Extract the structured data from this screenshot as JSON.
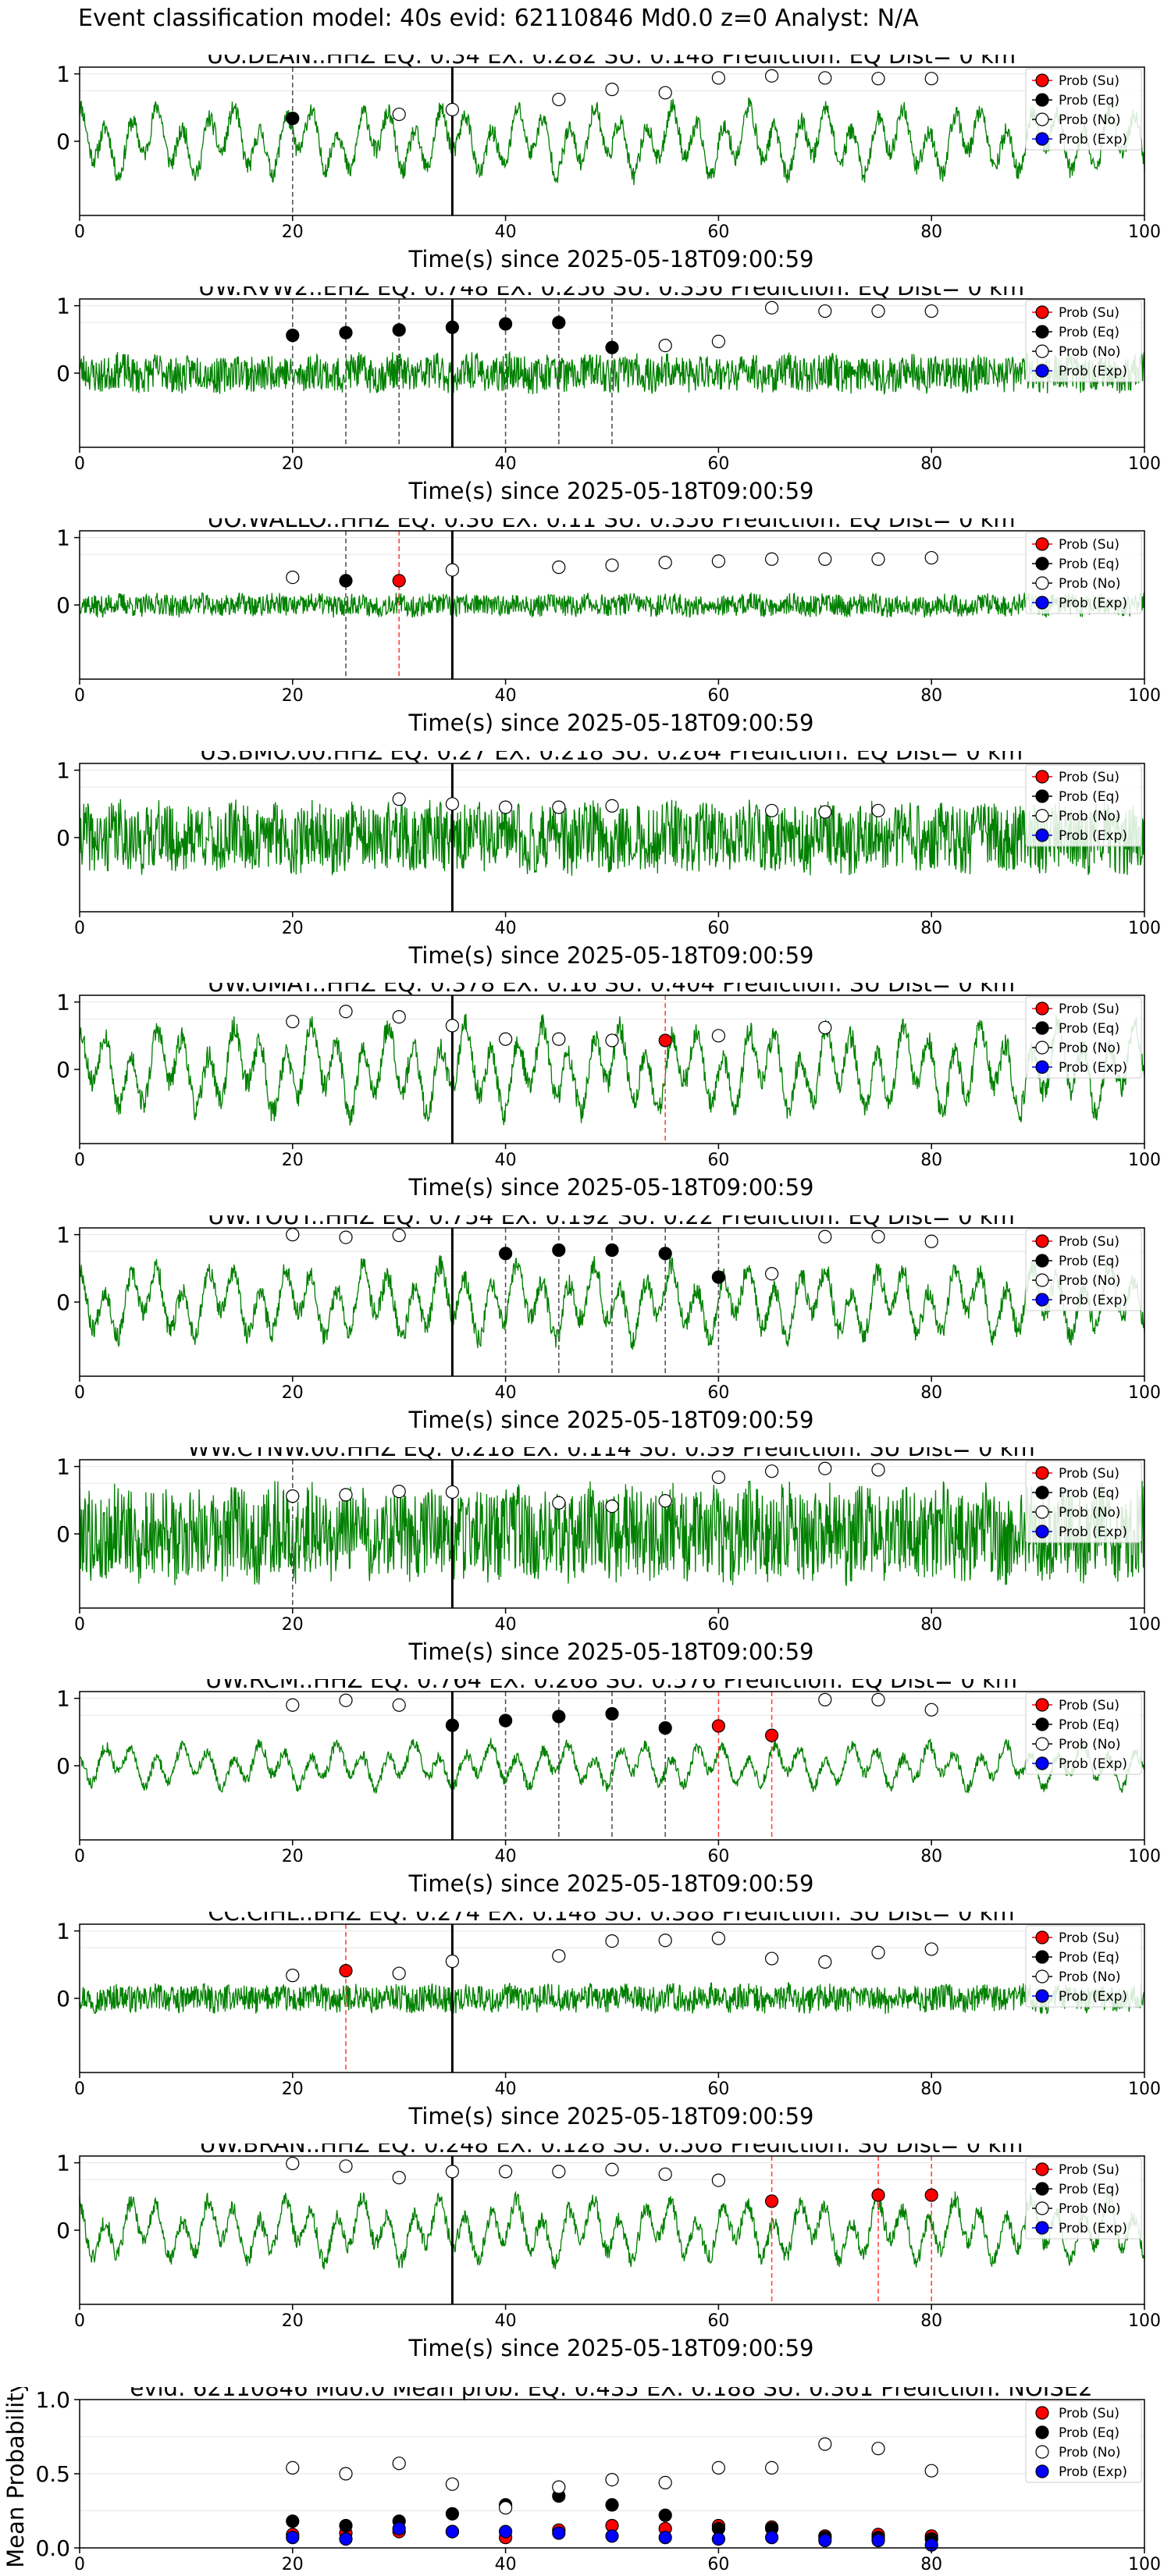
{
  "suptitle": "Event classification model: 40s evid: 62110846 Md0.0 z=0 Analyst: N/A",
  "legend": {
    "su": "Prob (Su)",
    "eq": "Prob (Eq)",
    "no": "Prob (No)",
    "exp": "Prob (Exp)"
  },
  "colors": {
    "trace": "#008000",
    "su": "#ff0000",
    "eq": "#000000",
    "no": "#ffffff",
    "exp": "#0000ff",
    "eq_line": "#555555",
    "su_line": "#ff4444"
  },
  "chart_data": [
    {
      "type": "line",
      "title": "UO.DEAN..HHZ   EQ: 0.34  EX: 0.282  SU: 0.148   Prediction: EQ    Dist= 0 km",
      "xlabel": "Time(s) since 2025-05-18T09:00:59",
      "xlim": [
        0,
        100
      ],
      "ylim": [
        -1.1,
        1.1
      ],
      "xticks": [
        "0",
        "20",
        "40",
        "60",
        "80",
        "100"
      ],
      "yticks": [
        "1",
        "0"
      ],
      "pick_time": 35,
      "eq_lines": [
        20
      ],
      "su_lines": [],
      "seed": 11,
      "amp": 0.55,
      "style": "osc",
      "points": [
        {
          "t": 20,
          "p": 0.34,
          "c": "eq"
        },
        {
          "t": 30,
          "p": 0.4,
          "c": "no"
        },
        {
          "t": 35,
          "p": 0.47,
          "c": "no"
        },
        {
          "t": 45,
          "p": 0.62,
          "c": "no"
        },
        {
          "t": 50,
          "p": 0.77,
          "c": "no"
        },
        {
          "t": 55,
          "p": 0.72,
          "c": "no"
        },
        {
          "t": 60,
          "p": 0.94,
          "c": "no"
        },
        {
          "t": 65,
          "p": 0.97,
          "c": "no"
        },
        {
          "t": 70,
          "p": 0.94,
          "c": "no"
        },
        {
          "t": 75,
          "p": 0.93,
          "c": "no"
        },
        {
          "t": 80,
          "p": 0.93,
          "c": "no"
        }
      ]
    },
    {
      "type": "line",
      "title": "UW.RVW2..EHZ   EQ: 0.748  EX: 0.256  SU: 0.356   Prediction: EQ    Dist= 0 km",
      "xlabel": "Time(s) since 2025-05-18T09:00:59",
      "xlim": [
        0,
        100
      ],
      "ylim": [
        -1.1,
        1.1
      ],
      "xticks": [
        "0",
        "20",
        "40",
        "60",
        "80",
        "100"
      ],
      "yticks": [
        "1",
        "0"
      ],
      "pick_time": 35,
      "eq_lines": [
        20,
        25,
        30,
        40,
        45,
        50
      ],
      "su_lines": [],
      "seed": 23,
      "amp": 0.3,
      "style": "noise",
      "points": [
        {
          "t": 20,
          "p": 0.56,
          "c": "eq"
        },
        {
          "t": 25,
          "p": 0.6,
          "c": "eq"
        },
        {
          "t": 30,
          "p": 0.64,
          "c": "eq"
        },
        {
          "t": 35,
          "p": 0.68,
          "c": "eq"
        },
        {
          "t": 40,
          "p": 0.73,
          "c": "eq"
        },
        {
          "t": 45,
          "p": 0.75,
          "c": "eq"
        },
        {
          "t": 50,
          "p": 0.38,
          "c": "eq"
        },
        {
          "t": 55,
          "p": 0.41,
          "c": "no"
        },
        {
          "t": 60,
          "p": 0.47,
          "c": "no"
        },
        {
          "t": 65,
          "p": 0.97,
          "c": "no"
        },
        {
          "t": 70,
          "p": 0.92,
          "c": "no"
        },
        {
          "t": 75,
          "p": 0.92,
          "c": "no"
        },
        {
          "t": 80,
          "p": 0.92,
          "c": "no"
        }
      ]
    },
    {
      "type": "line",
      "title": "UO.WALLO..HHZ   EQ: 0.36  EX: 0.11  SU: 0.356   Prediction: EQ    Dist= 0 km",
      "xlabel": "Time(s) since 2025-05-18T09:00:59",
      "xlim": [
        0,
        100
      ],
      "ylim": [
        -1.1,
        1.1
      ],
      "xticks": [
        "0",
        "20",
        "40",
        "60",
        "80",
        "100"
      ],
      "yticks": [
        "1",
        "0"
      ],
      "pick_time": 35,
      "eq_lines": [
        25
      ],
      "su_lines": [
        30
      ],
      "seed": 37,
      "amp": 0.18,
      "style": "noise",
      "points": [
        {
          "t": 20,
          "p": 0.41,
          "c": "no"
        },
        {
          "t": 25,
          "p": 0.36,
          "c": "eq"
        },
        {
          "t": 30,
          "p": 0.36,
          "c": "su"
        },
        {
          "t": 35,
          "p": 0.52,
          "c": "no"
        },
        {
          "t": 45,
          "p": 0.56,
          "c": "no"
        },
        {
          "t": 50,
          "p": 0.59,
          "c": "no"
        },
        {
          "t": 55,
          "p": 0.63,
          "c": "no"
        },
        {
          "t": 60,
          "p": 0.65,
          "c": "no"
        },
        {
          "t": 65,
          "p": 0.68,
          "c": "no"
        },
        {
          "t": 70,
          "p": 0.68,
          "c": "no"
        },
        {
          "t": 75,
          "p": 0.68,
          "c": "no"
        },
        {
          "t": 80,
          "p": 0.7,
          "c": "no"
        }
      ]
    },
    {
      "type": "line",
      "title": "US.BMO.00.HHZ   EQ: 0.27  EX: 0.218  SU: 0.264   Prediction: EQ    Dist= 0 km",
      "xlabel": "Time(s) since 2025-05-18T09:00:59",
      "xlim": [
        0,
        100
      ],
      "ylim": [
        -1.1,
        1.1
      ],
      "xticks": [
        "0",
        "20",
        "40",
        "60",
        "80",
        "100"
      ],
      "yticks": [
        "1",
        "0"
      ],
      "pick_time": 35,
      "eq_lines": [],
      "su_lines": [],
      "seed": 41,
      "amp": 0.55,
      "style": "noise",
      "points": [
        {
          "t": 30,
          "p": 0.57,
          "c": "no"
        },
        {
          "t": 35,
          "p": 0.5,
          "c": "no"
        },
        {
          "t": 40,
          "p": 0.45,
          "c": "no"
        },
        {
          "t": 45,
          "p": 0.45,
          "c": "no"
        },
        {
          "t": 50,
          "p": 0.47,
          "c": "no"
        },
        {
          "t": 65,
          "p": 0.4,
          "c": "no"
        },
        {
          "t": 70,
          "p": 0.38,
          "c": "no"
        },
        {
          "t": 75,
          "p": 0.4,
          "c": "no"
        }
      ]
    },
    {
      "type": "line",
      "title": "UW.UMAT..HHZ   EQ: 0.378  EX: 0.16  SU: 0.404   Prediction: SU    Dist= 0 km",
      "xlabel": "Time(s) since 2025-05-18T09:00:59",
      "xlim": [
        0,
        100
      ],
      "ylim": [
        -1.1,
        1.1
      ],
      "xticks": [
        "0",
        "20",
        "40",
        "60",
        "80",
        "100"
      ],
      "yticks": [
        "1",
        "0"
      ],
      "pick_time": 35,
      "eq_lines": [],
      "su_lines": [
        55
      ],
      "seed": 53,
      "amp": 0.7,
      "style": "osc",
      "points": [
        {
          "t": 20,
          "p": 0.71,
          "c": "no"
        },
        {
          "t": 25,
          "p": 0.86,
          "c": "no"
        },
        {
          "t": 30,
          "p": 0.78,
          "c": "no"
        },
        {
          "t": 35,
          "p": 0.65,
          "c": "no"
        },
        {
          "t": 40,
          "p": 0.45,
          "c": "no"
        },
        {
          "t": 45,
          "p": 0.45,
          "c": "no"
        },
        {
          "t": 50,
          "p": 0.43,
          "c": "no"
        },
        {
          "t": 55,
          "p": 0.43,
          "c": "su"
        },
        {
          "t": 60,
          "p": 0.5,
          "c": "no"
        },
        {
          "t": 70,
          "p": 0.62,
          "c": "no"
        }
      ]
    },
    {
      "type": "line",
      "title": "UW.TOUT..HHZ   EQ: 0.754  EX: 0.192  SU: 0.22   Prediction: EQ    Dist= 0 km",
      "xlabel": "Time(s) since 2025-05-18T09:00:59",
      "xlim": [
        0,
        100
      ],
      "ylim": [
        -1.1,
        1.1
      ],
      "xticks": [
        "0",
        "20",
        "40",
        "60",
        "80",
        "100"
      ],
      "yticks": [
        "1",
        "0"
      ],
      "pick_time": 35,
      "eq_lines": [
        40,
        45,
        50,
        55,
        60
      ],
      "su_lines": [],
      "seed": 67,
      "amp": 0.6,
      "style": "osc",
      "points": [
        {
          "t": 20,
          "p": 1.0,
          "c": "no"
        },
        {
          "t": 25,
          "p": 0.96,
          "c": "no"
        },
        {
          "t": 30,
          "p": 0.99,
          "c": "no"
        },
        {
          "t": 40,
          "p": 0.72,
          "c": "eq"
        },
        {
          "t": 45,
          "p": 0.77,
          "c": "eq"
        },
        {
          "t": 50,
          "p": 0.77,
          "c": "eq"
        },
        {
          "t": 55,
          "p": 0.72,
          "c": "eq"
        },
        {
          "t": 60,
          "p": 0.37,
          "c": "eq"
        },
        {
          "t": 65,
          "p": 0.42,
          "c": "no"
        },
        {
          "t": 70,
          "p": 0.97,
          "c": "no"
        },
        {
          "t": 75,
          "p": 0.97,
          "c": "no"
        },
        {
          "t": 80,
          "p": 0.9,
          "c": "no"
        }
      ]
    },
    {
      "type": "line",
      "title": "WW.CTNW.00.HHZ   EQ: 0.218  EX: 0.114  SU: 0.39   Prediction: SU    Dist= 0 km",
      "xlabel": "Time(s) since 2025-05-18T09:00:59",
      "xlim": [
        0,
        100
      ],
      "ylim": [
        -1.1,
        1.1
      ],
      "xticks": [
        "0",
        "20",
        "40",
        "60",
        "80",
        "100"
      ],
      "yticks": [
        "1",
        "0"
      ],
      "pick_time": 35,
      "eq_lines": [
        20
      ],
      "su_lines": [],
      "seed": 79,
      "amp": 0.75,
      "style": "noise",
      "points": [
        {
          "t": 20,
          "p": 0.56,
          "c": "no"
        },
        {
          "t": 25,
          "p": 0.58,
          "c": "no"
        },
        {
          "t": 30,
          "p": 0.63,
          "c": "no"
        },
        {
          "t": 35,
          "p": 0.62,
          "c": "no"
        },
        {
          "t": 45,
          "p": 0.46,
          "c": "no"
        },
        {
          "t": 50,
          "p": 0.41,
          "c": "no"
        },
        {
          "t": 55,
          "p": 0.49,
          "c": "no"
        },
        {
          "t": 60,
          "p": 0.84,
          "c": "no"
        },
        {
          "t": 65,
          "p": 0.93,
          "c": "no"
        },
        {
          "t": 70,
          "p": 0.97,
          "c": "no"
        },
        {
          "t": 75,
          "p": 0.95,
          "c": "no"
        }
      ]
    },
    {
      "type": "line",
      "title": "UW.RCM..HHZ   EQ: 0.764  EX: 0.268  SU: 0.576   Prediction: EQ    Dist= 0 km",
      "xlabel": "Time(s) since 2025-05-18T09:00:59",
      "xlim": [
        0,
        100
      ],
      "ylim": [
        -1.1,
        1.1
      ],
      "xticks": [
        "0",
        "20",
        "40",
        "60",
        "80",
        "100"
      ],
      "yticks": [
        "1",
        "0"
      ],
      "pick_time": 35,
      "eq_lines": [
        40,
        45,
        50,
        55
      ],
      "su_lines": [
        60,
        65
      ],
      "seed": 83,
      "amp": 0.35,
      "style": "osc",
      "points": [
        {
          "t": 20,
          "p": 0.9,
          "c": "no"
        },
        {
          "t": 25,
          "p": 0.97,
          "c": "no"
        },
        {
          "t": 30,
          "p": 0.9,
          "c": "no"
        },
        {
          "t": 35,
          "p": 0.6,
          "c": "eq"
        },
        {
          "t": 40,
          "p": 0.67,
          "c": "eq"
        },
        {
          "t": 45,
          "p": 0.73,
          "c": "eq"
        },
        {
          "t": 50,
          "p": 0.77,
          "c": "eq"
        },
        {
          "t": 55,
          "p": 0.56,
          "c": "eq"
        },
        {
          "t": 60,
          "p": 0.59,
          "c": "su"
        },
        {
          "t": 65,
          "p": 0.45,
          "c": "su"
        },
        {
          "t": 70,
          "p": 0.98,
          "c": "no"
        },
        {
          "t": 75,
          "p": 0.98,
          "c": "no"
        },
        {
          "t": 80,
          "p": 0.83,
          "c": "no"
        }
      ]
    },
    {
      "type": "line",
      "title": "CC.CIHL..BHZ   EQ: 0.274  EX: 0.148  SU: 0.388   Prediction: SU    Dist= 0 km",
      "xlabel": "Time(s) since 2025-05-18T09:00:59",
      "xlim": [
        0,
        100
      ],
      "ylim": [
        -1.1,
        1.1
      ],
      "xticks": [
        "0",
        "20",
        "40",
        "60",
        "80",
        "100"
      ],
      "yticks": [
        "1",
        "0"
      ],
      "pick_time": 35,
      "eq_lines": [],
      "su_lines": [
        25
      ],
      "seed": 97,
      "amp": 0.22,
      "style": "noise",
      "points": [
        {
          "t": 20,
          "p": 0.34,
          "c": "no"
        },
        {
          "t": 25,
          "p": 0.41,
          "c": "su"
        },
        {
          "t": 30,
          "p": 0.37,
          "c": "no"
        },
        {
          "t": 35,
          "p": 0.55,
          "c": "no"
        },
        {
          "t": 45,
          "p": 0.63,
          "c": "no"
        },
        {
          "t": 50,
          "p": 0.85,
          "c": "no"
        },
        {
          "t": 55,
          "p": 0.86,
          "c": "no"
        },
        {
          "t": 60,
          "p": 0.89,
          "c": "no"
        },
        {
          "t": 65,
          "p": 0.59,
          "c": "no"
        },
        {
          "t": 70,
          "p": 0.54,
          "c": "no"
        },
        {
          "t": 75,
          "p": 0.68,
          "c": "no"
        },
        {
          "t": 80,
          "p": 0.73,
          "c": "no"
        }
      ]
    },
    {
      "type": "line",
      "title": "UW.BRAN..HHZ   EQ: 0.248  EX: 0.128  SU: 0.508   Prediction: SU    Dist= 0 km",
      "xlabel": "Time(s) since 2025-05-18T09:00:59",
      "xlim": [
        0,
        100
      ],
      "ylim": [
        -1.1,
        1.1
      ],
      "xticks": [
        "0",
        "20",
        "40",
        "60",
        "80",
        "100"
      ],
      "yticks": [
        "1",
        "0"
      ],
      "pick_time": 35,
      "eq_lines": [],
      "su_lines": [
        65,
        75,
        80
      ],
      "seed": 101,
      "amp": 0.5,
      "style": "osc",
      "points": [
        {
          "t": 20,
          "p": 0.99,
          "c": "no"
        },
        {
          "t": 25,
          "p": 0.95,
          "c": "no"
        },
        {
          "t": 30,
          "p": 0.78,
          "c": "no"
        },
        {
          "t": 35,
          "p": 0.87,
          "c": "no"
        },
        {
          "t": 40,
          "p": 0.87,
          "c": "no"
        },
        {
          "t": 45,
          "p": 0.87,
          "c": "no"
        },
        {
          "t": 50,
          "p": 0.9,
          "c": "no"
        },
        {
          "t": 55,
          "p": 0.83,
          "c": "no"
        },
        {
          "t": 60,
          "p": 0.74,
          "c": "no"
        },
        {
          "t": 65,
          "p": 0.43,
          "c": "su"
        },
        {
          "t": 75,
          "p": 0.52,
          "c": "su"
        },
        {
          "t": 80,
          "p": 0.52,
          "c": "su"
        }
      ]
    },
    {
      "type": "scatter",
      "title": "evid: 62110846  Md0.0   Mean prob:   EQ: 0.435  EX: 0.188  SU: 0.361   Prediction: NOISE2",
      "xlabel": "",
      "ylabel": "Mean Probability",
      "xlim": [
        0,
        100
      ],
      "ylim": [
        0,
        1
      ],
      "xticks": [
        "0",
        "20",
        "40",
        "60",
        "80",
        "100"
      ],
      "yticks": [
        "0.0",
        "0.5",
        "1.0"
      ],
      "series": [
        {
          "name": "Prob (Su)",
          "c": "su",
          "x": [
            20,
            25,
            30,
            35,
            40,
            45,
            50,
            55,
            60,
            65,
            70,
            75,
            80
          ],
          "y": [
            0.09,
            0.1,
            0.11,
            0.11,
            0.07,
            0.12,
            0.15,
            0.13,
            0.15,
            0.14,
            0.08,
            0.09,
            0.08
          ]
        },
        {
          "name": "Prob (Eq)",
          "c": "eq",
          "x": [
            20,
            25,
            30,
            35,
            40,
            45,
            50,
            55,
            60,
            65,
            70,
            75,
            80
          ],
          "y": [
            0.18,
            0.15,
            0.18,
            0.23,
            0.29,
            0.35,
            0.29,
            0.22,
            0.13,
            0.13,
            0.07,
            0.07,
            0.06
          ]
        },
        {
          "name": "Prob (No)",
          "c": "no",
          "x": [
            20,
            25,
            30,
            35,
            40,
            45,
            50,
            55,
            60,
            65,
            70,
            75,
            80
          ],
          "y": [
            0.54,
            0.5,
            0.57,
            0.43,
            0.27,
            0.41,
            0.46,
            0.44,
            0.54,
            0.54,
            0.7,
            0.67,
            0.52
          ]
        },
        {
          "name": "Prob (Exp)",
          "c": "exp",
          "x": [
            20,
            25,
            30,
            35,
            40,
            45,
            50,
            55,
            60,
            65,
            70,
            75,
            80
          ],
          "y": [
            0.07,
            0.06,
            0.13,
            0.11,
            0.11,
            0.1,
            0.08,
            0.07,
            0.06,
            0.07,
            0.05,
            0.05,
            0.02
          ]
        }
      ]
    }
  ]
}
